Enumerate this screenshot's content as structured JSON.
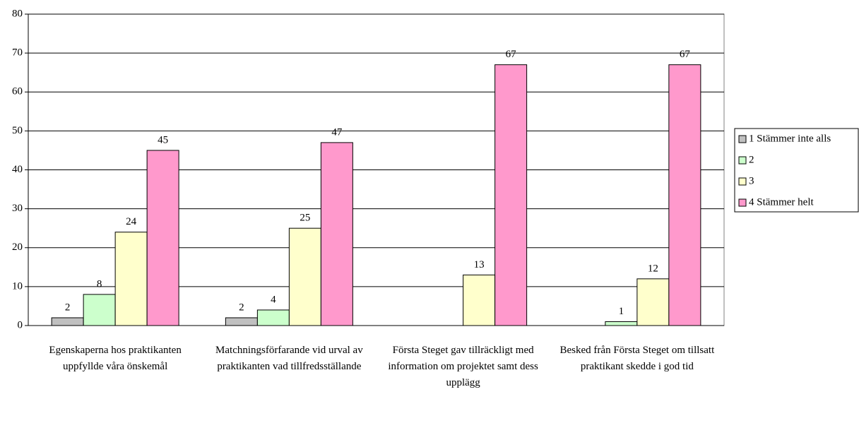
{
  "chart_data": {
    "type": "bar",
    "categories": [
      "Egenskaperna hos praktikanten uppfyllde våra önskemål",
      "Matchningsförfarande vid urval av praktikanten vad tillfredsställande",
      "Första Steget gav tillräckligt med information om projektet samt dess upplägg",
      "Besked från Första Steget om tillsatt praktikant skedde i god tid"
    ],
    "series": [
      {
        "name": "1 Stämmer inte alls",
        "color": "#c0c0c0",
        "values": [
          2,
          2,
          null,
          null
        ]
      },
      {
        "name": "2",
        "color": "#ccffcc",
        "values": [
          8,
          4,
          null,
          1
        ]
      },
      {
        "name": "3",
        "color": "#ffffcc",
        "values": [
          24,
          25,
          13,
          12
        ]
      },
      {
        "name": "4 Stämmer helt",
        "color": "#ff99cc",
        "values": [
          45,
          47,
          67,
          67
        ]
      }
    ],
    "ylim": [
      0,
      80
    ],
    "yticks": [
      0,
      10,
      20,
      30,
      40,
      50,
      60,
      70,
      80
    ],
    "grid": true,
    "legend": "right"
  }
}
